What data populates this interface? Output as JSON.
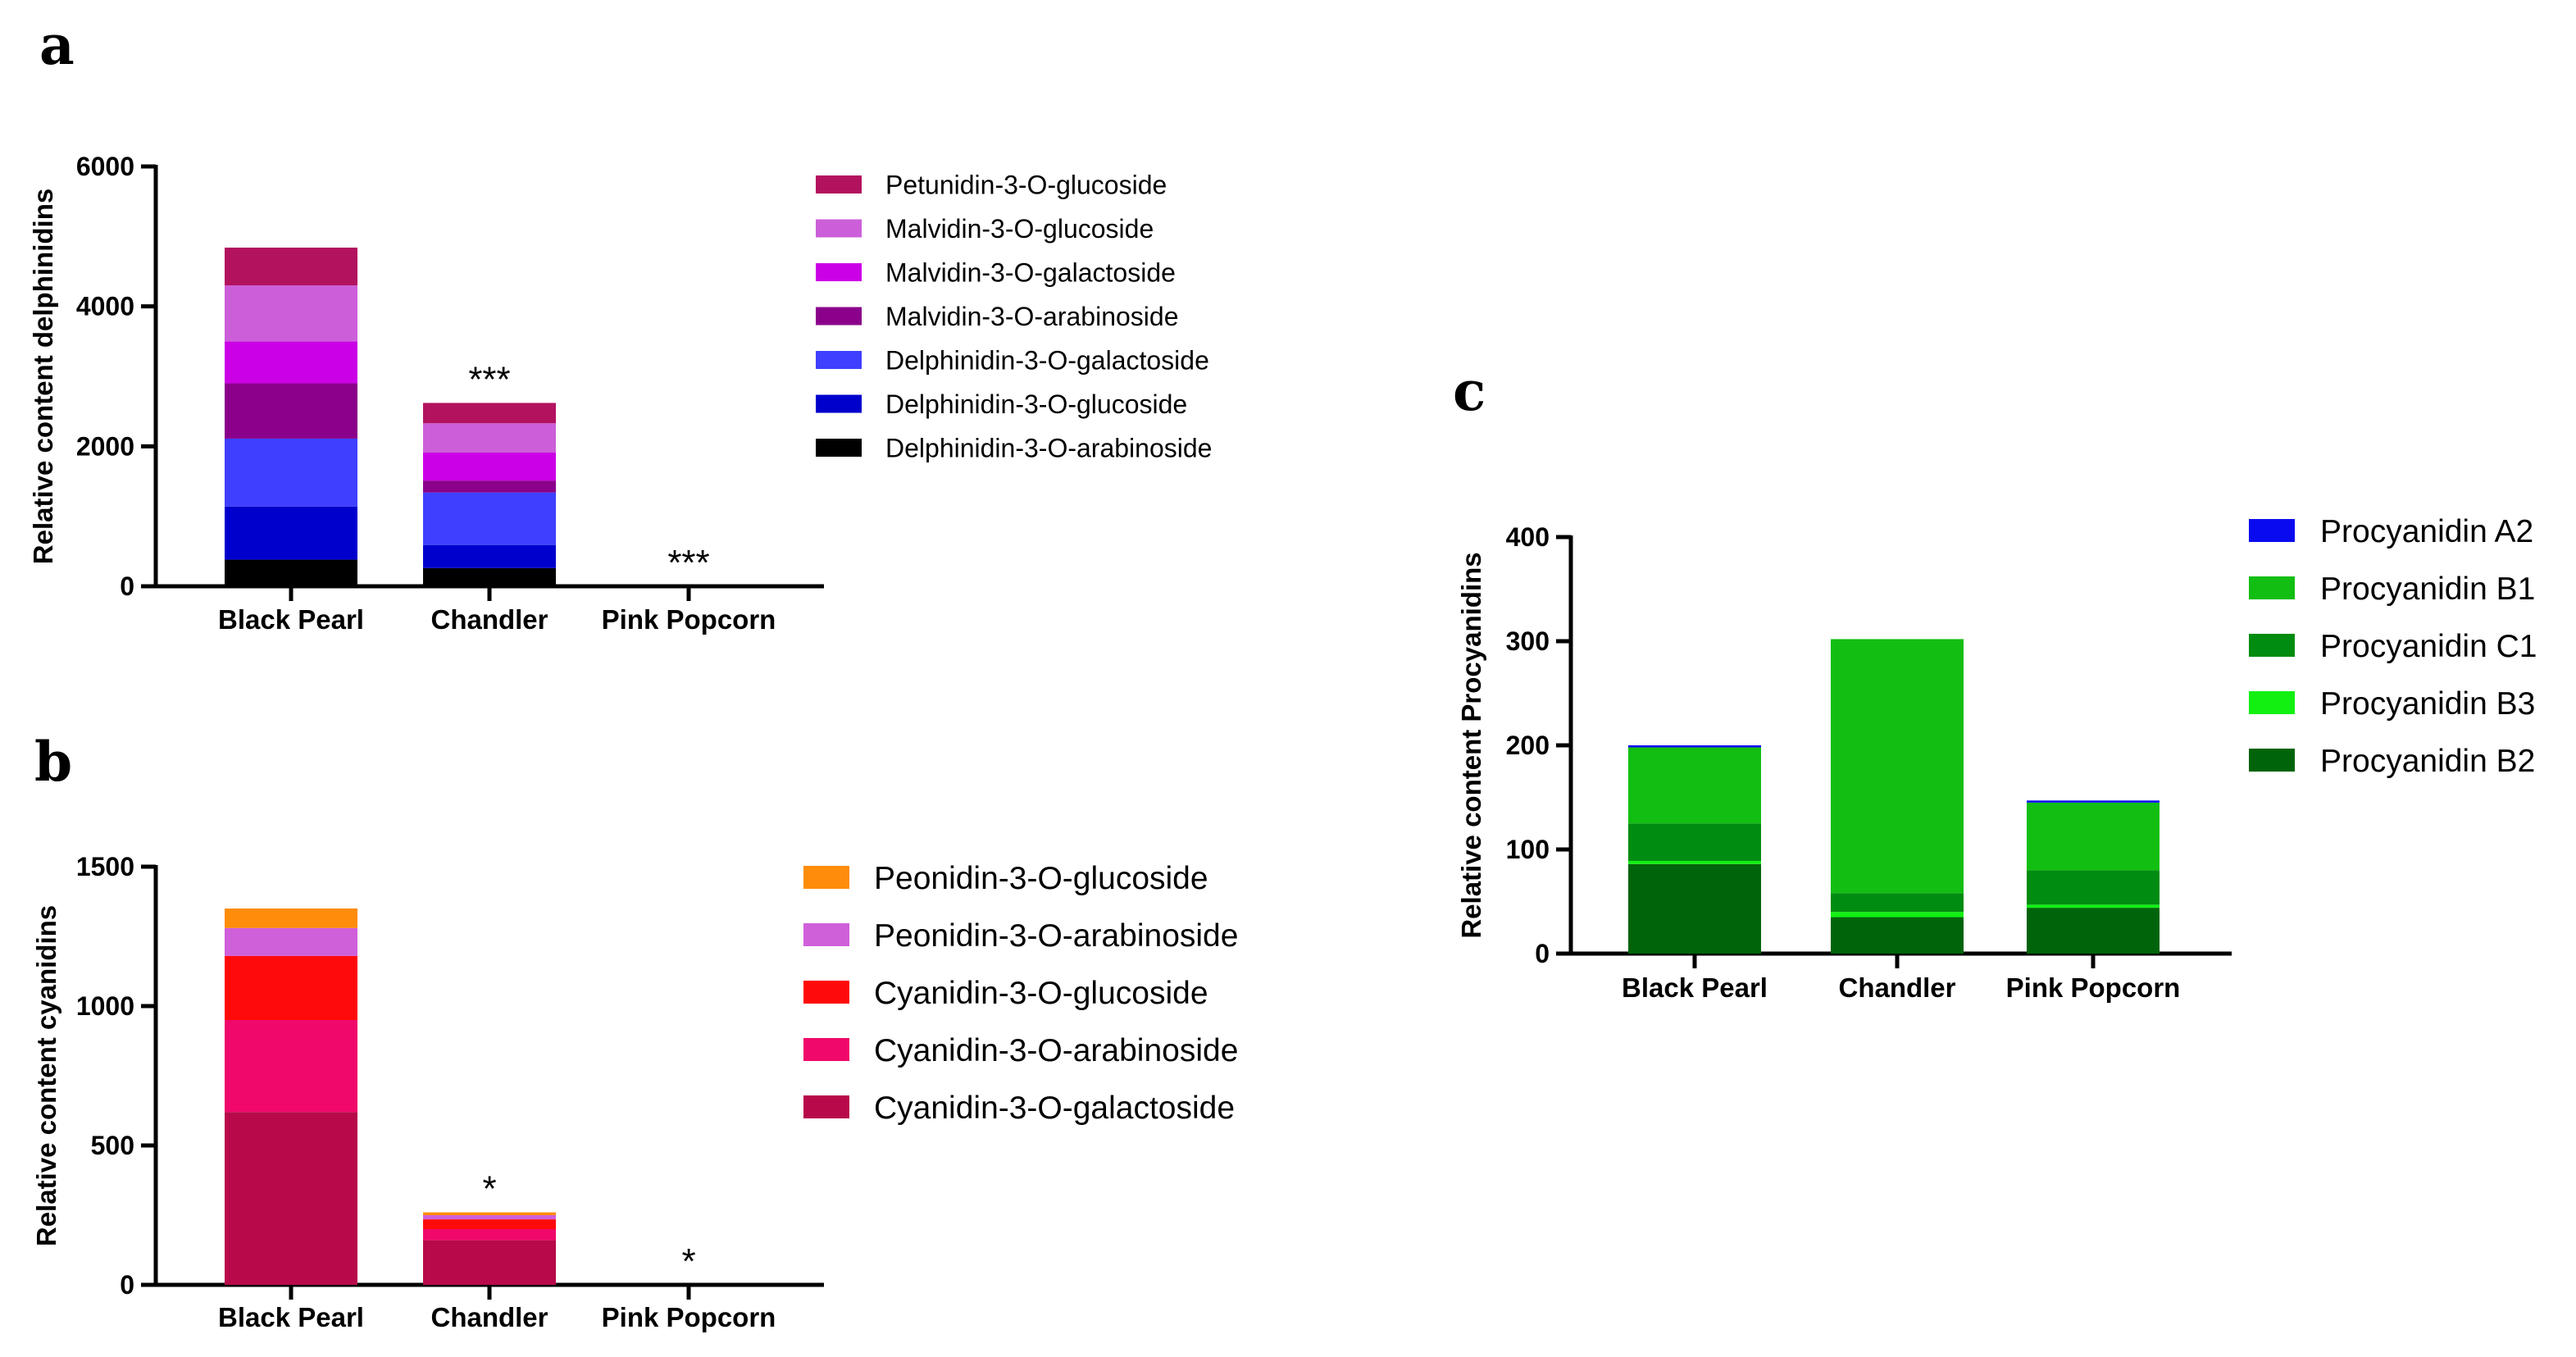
{
  "figure_labels": {
    "a": "a",
    "b": "b",
    "c": "c"
  },
  "chart_data": [
    {
      "panel": "a",
      "type": "bar",
      "stacked": true,
      "title": "",
      "xlabel": "",
      "ylabel": "Relative content delphinidins",
      "ylim": [
        0,
        6000
      ],
      "yticks": [
        0,
        2000,
        4000,
        6000
      ],
      "legend_position": "right",
      "categories": [
        "Black Pearl",
        "Chandler",
        "Pink Popcorn"
      ],
      "annotations": [
        "",
        "***",
        "***"
      ],
      "series": [
        {
          "name": "Delphinidin-3-O-arabinoside",
          "color": "#000000",
          "values": [
            380,
            260,
            0
          ]
        },
        {
          "name": "Delphinidin-3-O-glucoside",
          "color": "#0000CD",
          "values": [
            760,
            330,
            0
          ]
        },
        {
          "name": "Delphinidin-3-O-galactoside",
          "color": "#3F3FFF",
          "values": [
            970,
            750,
            0
          ]
        },
        {
          "name": "Malvidin-3-O-arabinoside",
          "color": "#8B008B",
          "values": [
            790,
            170,
            0
          ]
        },
        {
          "name": "Malvidin-3-O-galactoside",
          "color": "#CC00E6",
          "values": [
            600,
            400,
            0
          ]
        },
        {
          "name": "Malvidin-3-O-glucoside",
          "color": "#CC5FD9",
          "values": [
            800,
            420,
            0
          ]
        },
        {
          "name": "Petunidin-3-O-glucoside",
          "color": "#B3125F",
          "values": [
            540,
            290,
            0
          ]
        }
      ]
    },
    {
      "panel": "b",
      "type": "bar",
      "stacked": true,
      "title": "",
      "xlabel": "",
      "ylabel": "Relative content cyanidins",
      "ylim": [
        0,
        1500
      ],
      "yticks": [
        0,
        500,
        1000,
        1500
      ],
      "legend_position": "right",
      "categories": [
        "Black Pearl",
        "Chandler",
        "Pink Popcorn"
      ],
      "annotations": [
        "",
        "*",
        "*"
      ],
      "series": [
        {
          "name": "Cyanidin-3-O-galactoside",
          "color": "#B80A4A",
          "values": [
            620,
            160,
            0
          ]
        },
        {
          "name": "Cyanidin-3-O-arabinoside",
          "color": "#F0096A",
          "values": [
            330,
            40,
            0
          ]
        },
        {
          "name": "Cyanidin-3-O-glucoside",
          "color": "#FF0A0A",
          "values": [
            230,
            35,
            0
          ]
        },
        {
          "name": "Peonidin-3-O-arabinoside",
          "color": "#D05FDA",
          "values": [
            100,
            15,
            0
          ]
        },
        {
          "name": "Peonidin-3-O-glucoside",
          "color": "#FF8C0A",
          "values": [
            70,
            10,
            0
          ]
        }
      ]
    },
    {
      "panel": "c",
      "type": "bar",
      "stacked": true,
      "title": "",
      "xlabel": "",
      "ylabel": "Relative content Procyanidins",
      "ylim": [
        0,
        400
      ],
      "yticks": [
        0,
        100,
        200,
        300,
        400
      ],
      "legend_position": "right",
      "categories": [
        "Black Pearl",
        "Chandler",
        "Pink Popcorn"
      ],
      "annotations": [
        "",
        "",
        ""
      ],
      "series": [
        {
          "name": "Procyanidin B2",
          "color": "#00640A",
          "values": [
            86,
            35,
            44
          ]
        },
        {
          "name": "Procyanidin B3",
          "color": "#12F012",
          "values": [
            3,
            5,
            3
          ]
        },
        {
          "name": "Procyanidin C1",
          "color": "#008C10",
          "values": [
            36,
            18,
            33
          ]
        },
        {
          "name": "Procyanidin B1",
          "color": "#12BE12",
          "values": [
            73,
            244,
            65
          ]
        },
        {
          "name": "Procyanidin A2",
          "color": "#0A0AF0",
          "values": [
            2,
            0,
            2
          ]
        }
      ]
    }
  ]
}
